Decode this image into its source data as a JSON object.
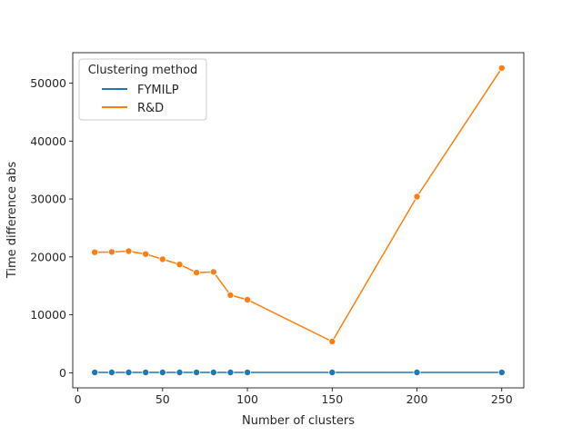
{
  "chart_data": {
    "type": "line",
    "title": "",
    "xlabel": "Number of clusters",
    "ylabel": "Time difference abs",
    "xlim": [
      -3,
      263
    ],
    "ylim": [
      -2600,
      55250
    ],
    "xticks": [
      0,
      50,
      100,
      150,
      200,
      250
    ],
    "yticks": [
      0,
      10000,
      20000,
      30000,
      40000,
      50000
    ],
    "grid": false,
    "legend": {
      "title": "Clustering method",
      "position": "top-left"
    },
    "x": [
      10,
      20,
      30,
      40,
      50,
      60,
      70,
      80,
      90,
      100,
      150,
      200,
      250
    ],
    "series": [
      {
        "name": "FYMILP",
        "color": "#1f77b4",
        "values": [
          60,
          60,
          60,
          60,
          60,
          60,
          60,
          60,
          60,
          60,
          60,
          60,
          60
        ]
      },
      {
        "name": "R&D",
        "color": "#ff7f0e",
        "values": [
          20800,
          20850,
          21000,
          20500,
          19600,
          18700,
          17300,
          17400,
          13400,
          12600,
          5400,
          30400,
          52600
        ]
      }
    ]
  }
}
